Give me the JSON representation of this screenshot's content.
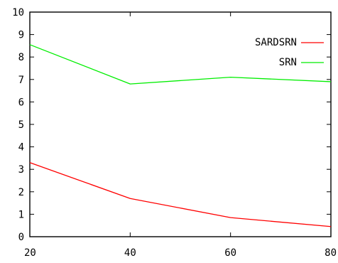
{
  "chart_data": {
    "type": "line",
    "title": "",
    "xlabel": "",
    "ylabel": "",
    "x": [
      20,
      40,
      60,
      80
    ],
    "xlim": [
      20,
      80
    ],
    "ylim": [
      0,
      10
    ],
    "xticks": [
      "20",
      "40",
      "60",
      "80"
    ],
    "yticks": [
      "0",
      "1",
      "2",
      "3",
      "4",
      "5",
      "6",
      "7",
      "8",
      "9",
      "10"
    ],
    "grid": false,
    "legend_position": "top-right",
    "series": [
      {
        "name": "SARDSRN",
        "color": "#ff0000",
        "values": [
          3.3,
          1.7,
          0.85,
          0.45
        ]
      },
      {
        "name": "SRN",
        "color": "#00ee00",
        "values": [
          8.55,
          6.8,
          7.1,
          6.9
        ]
      }
    ]
  }
}
